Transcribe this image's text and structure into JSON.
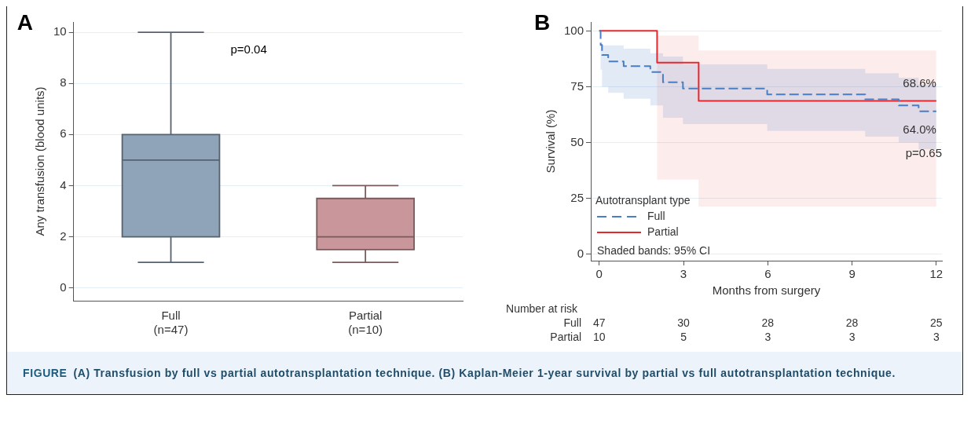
{
  "chart_data": [
    {
      "type": "box",
      "title": "A",
      "ylabel": "Any transfusion (blood units)",
      "categories": [
        "Full (n=47)",
        "Partial (n=10)"
      ],
      "boxes": [
        {
          "low": 1,
          "q1": 2,
          "median": 5,
          "q3": 6,
          "high": 10
        },
        {
          "low": 1,
          "q1": 1.5,
          "median": 2,
          "q3": 3.5,
          "high": 4
        }
      ],
      "colors": [
        "#8fa3b9",
        "#c9979b"
      ],
      "ylim": [
        -0.5,
        10.4
      ],
      "yticks": [
        0,
        2,
        4,
        6,
        8,
        10
      ],
      "grid": "y",
      "annotations": [
        "p=0.04"
      ]
    },
    {
      "type": "step",
      "title": "B",
      "xlabel": "Months from surgery",
      "ylabel": "Survival (%)",
      "legend_title": "Autotransplant type",
      "legend": "bottom left",
      "xlim": [
        -0.3,
        12.2
      ],
      "xticks": [
        0,
        3,
        6,
        9,
        12
      ],
      "ylim": [
        -3,
        104
      ],
      "yticks": [
        0,
        25,
        50,
        75,
        100
      ],
      "grid": "y",
      "series": [
        {
          "name": "Full",
          "color": "#4a7ec4",
          "line_style": "dashed",
          "x": [
            0,
            0.05,
            0.1,
            0.32,
            0.87,
            1.82,
            2.27,
            2.98,
            5.98,
            9.47,
            10.66,
            11.37,
            12
          ],
          "values": [
            100,
            93.7,
            89.2,
            86.3,
            84.2,
            81.6,
            77.0,
            74.2,
            71.5,
            69.3,
            66.6,
            64.0,
            64.0
          ],
          "upper": [
            100,
            95,
            93.5,
            93.5,
            92,
            90,
            88.5,
            85,
            83,
            81,
            79,
            76,
            76
          ],
          "lower": [
            100,
            82.6,
            75,
            72.2,
            69.6,
            66.6,
            61.1,
            58.2,
            55.2,
            52.6,
            50,
            47,
            47
          ]
        },
        {
          "name": "Partial",
          "color": "#e8282c",
          "line_style": "solid",
          "x": [
            0,
            2.06,
            3.54,
            12
          ],
          "values": [
            100,
            85.8,
            68.6,
            68.6
          ],
          "upper": [
            100,
            97.9,
            91.2,
            91.2
          ],
          "lower": [
            100,
            33.3,
            21.3,
            21.3
          ]
        }
      ],
      "annotations": [
        {
          "text": "68.6%",
          "x": 12,
          "y": 68.6
        },
        {
          "text": "64.0%",
          "x": 12,
          "y": 64.0
        },
        "p=0.65",
        "Shaded bands: 95% CI",
        "Number at risk",
        "Full 47 30 28 28 25",
        "Partial 10 5 3 3 3"
      ]
    },
    {
      "type": "other",
      "title": "FIGURE",
      "subtitle": "(A) Transfusion by full vs partial autotransplantation technique. (B) Kaplan-Meier 1-year survival by partial vs full autotransplantation technique."
    }
  ]
}
